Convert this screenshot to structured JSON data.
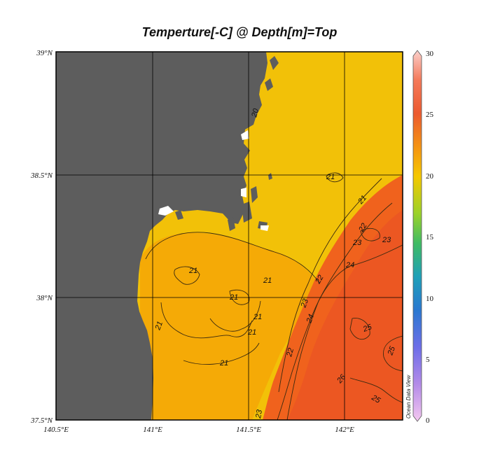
{
  "title": "Temperture[-C] @ Depth[m]=Top",
  "longitude_ticks": [
    "140.5°E",
    "141°E",
    "141.5°E",
    "142°E"
  ],
  "latitude_ticks": [
    "39°N",
    "38.5°N",
    "38°N",
    "37.5°N"
  ],
  "colorbar": {
    "labels": [
      "30",
      "25",
      "20",
      "15",
      "10",
      "5",
      "0"
    ],
    "colors": [
      "#f7a6a6",
      "#ee5a36",
      "#f5b000",
      "#6cc93a",
      "#1f8fbf",
      "#8d7df0",
      "#f1bff2"
    ]
  },
  "contour_labels": [
    "20",
    "21",
    "21",
    "21",
    "21",
    "21",
    "21",
    "21",
    "21",
    "21",
    "22",
    "22",
    "22",
    "23",
    "23",
    "23",
    "23",
    "24",
    "24",
    "25",
    "25",
    "25",
    "26"
  ],
  "credit": "Ocean Data View",
  "colors": {
    "land": "#5d5d5d",
    "warm_20": "#f2c108",
    "warm_21": "#f5aa06",
    "warm_24": "#f0621d",
    "warm_25": "#ec5722"
  }
}
